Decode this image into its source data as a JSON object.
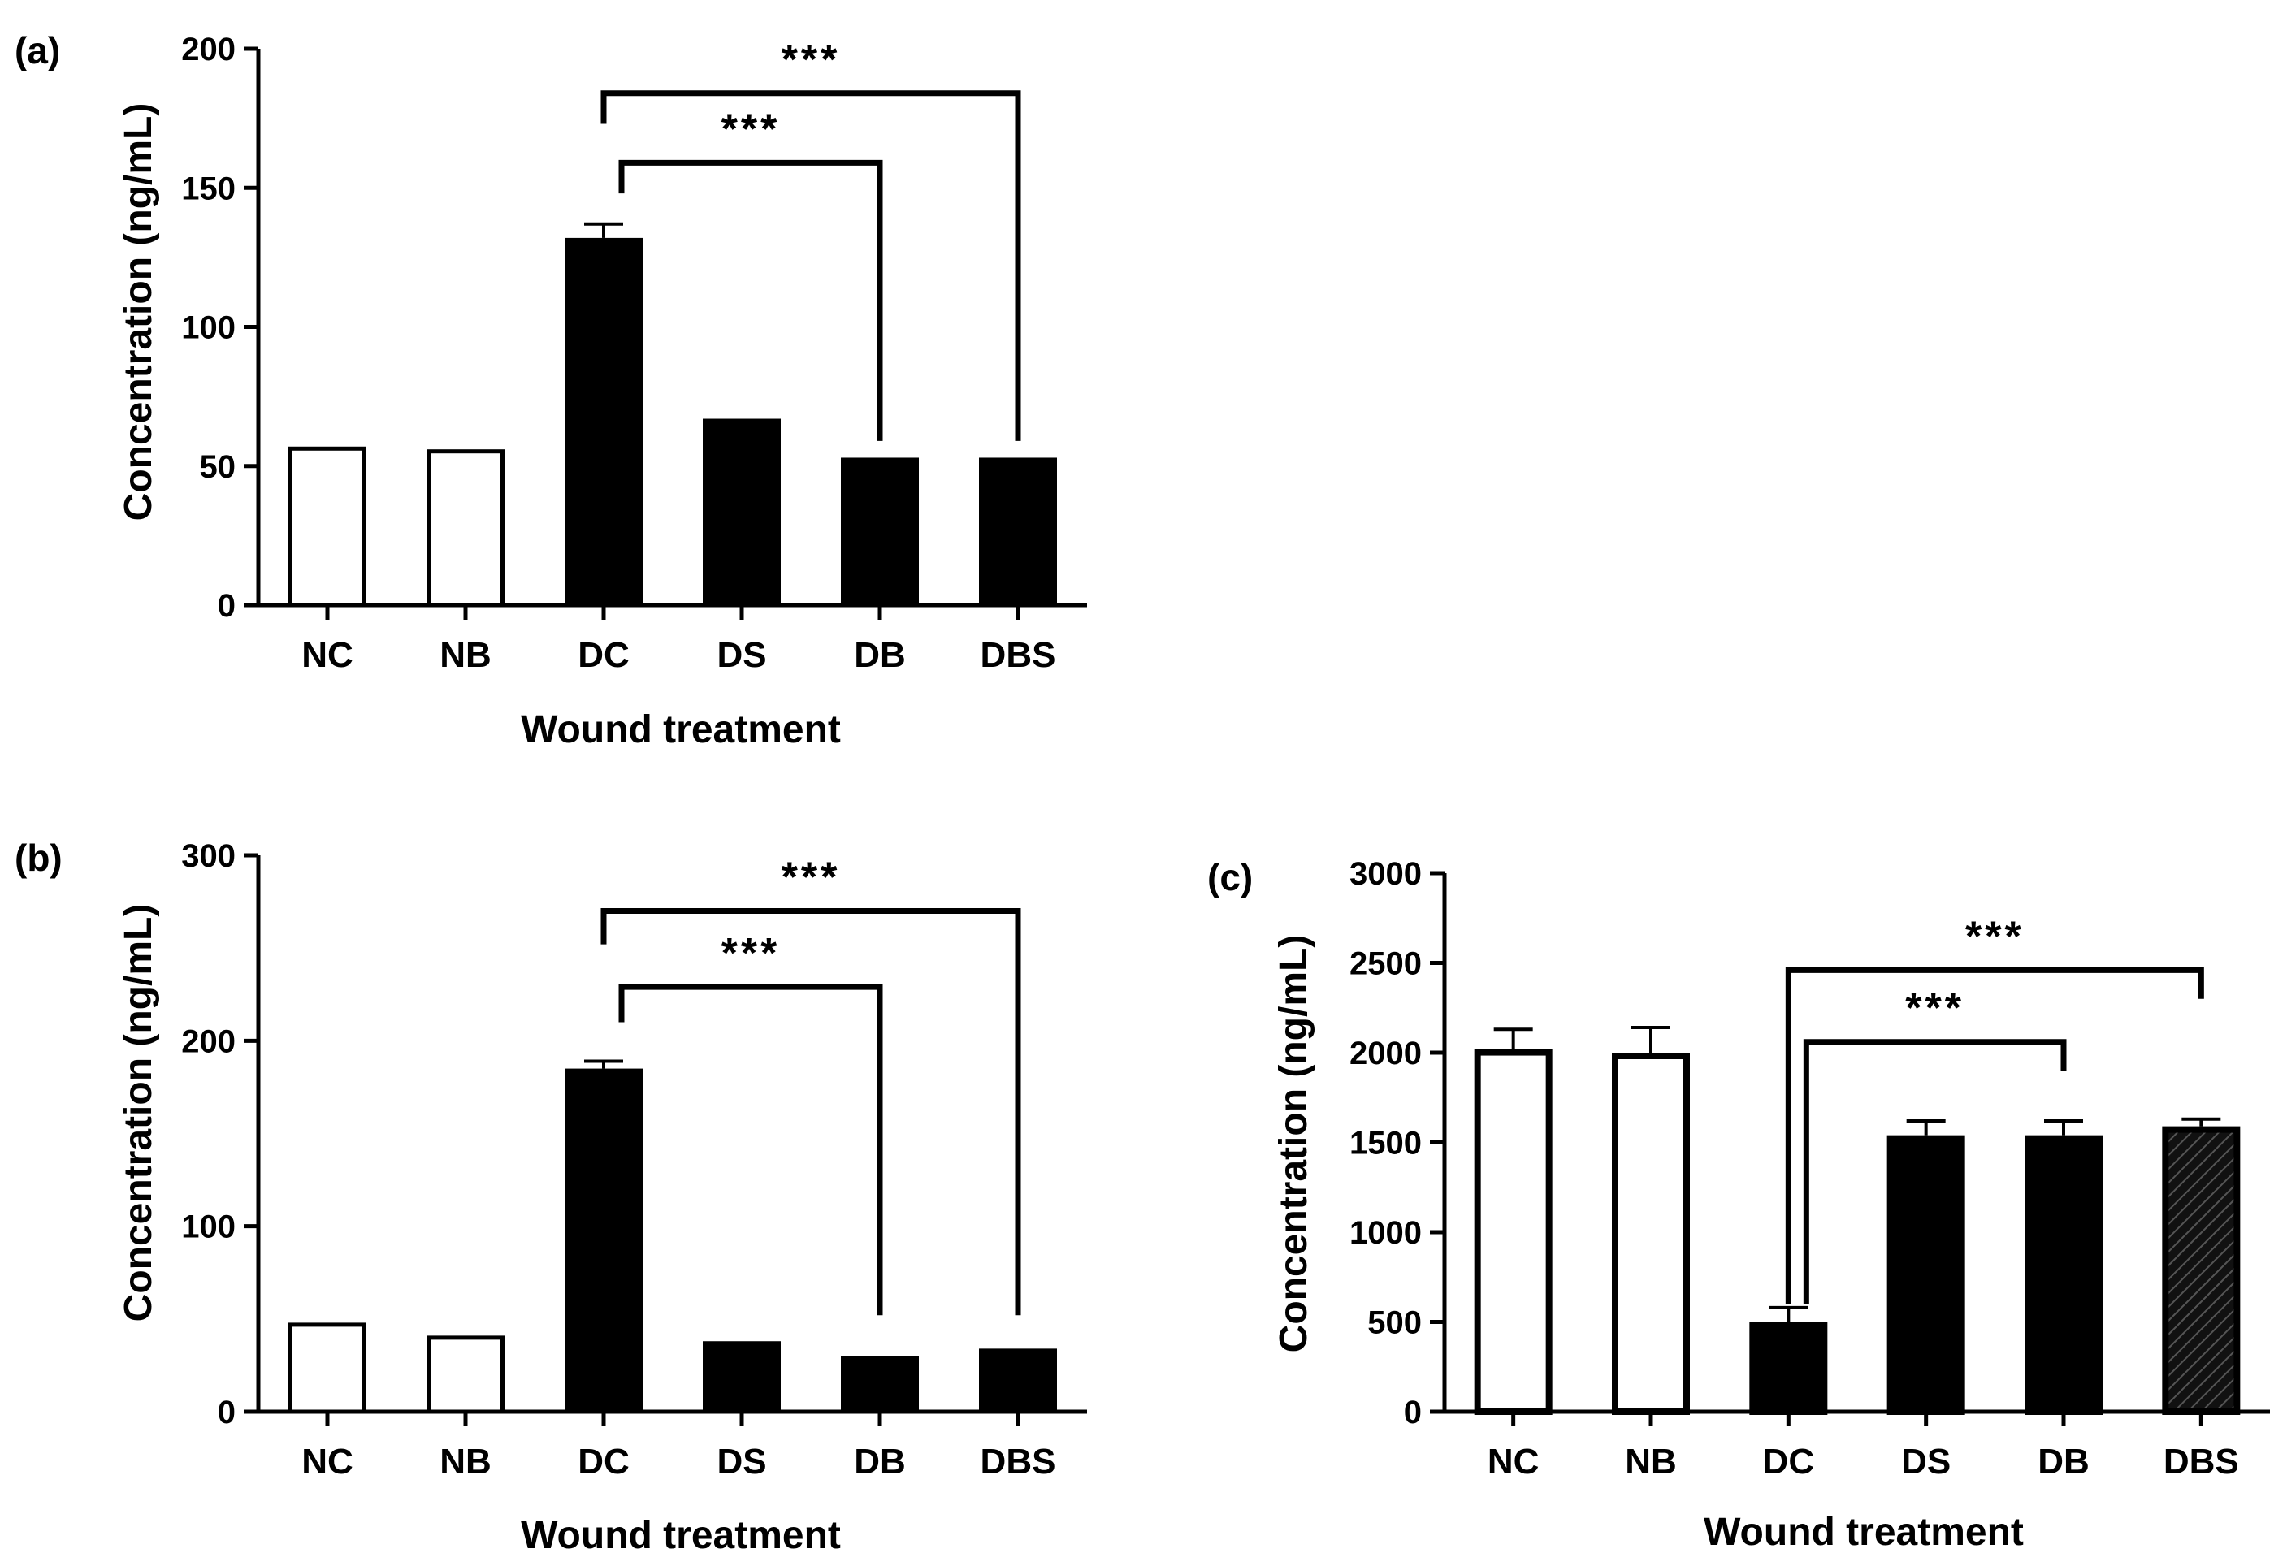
{
  "chart_data": [
    {
      "panel": "(a)",
      "type": "bar",
      "categories": [
        "NC",
        "NB",
        "DC",
        "DS",
        "DB",
        "DBS"
      ],
      "values": [
        57,
        56,
        132,
        67,
        53,
        53
      ],
      "errors": [
        0,
        0,
        5,
        0,
        0,
        0
      ],
      "fills": [
        "white",
        "white",
        "black",
        "black",
        "black",
        "black"
      ],
      "ylim": [
        0,
        200
      ],
      "yticks": [
        0,
        50,
        100,
        150,
        200
      ],
      "xlabel": "Wound treatment",
      "ylabel": "Concentration (ng/mL)",
      "significance": [
        {
          "from": "DC",
          "to": "DBS",
          "label": "***",
          "line_y": 184,
          "drop_y": 59,
          "start_y": 173
        },
        {
          "from": "DC",
          "to": "DB",
          "label": "***",
          "line_y": 159,
          "drop_y": 59,
          "start_y": 148
        }
      ]
    },
    {
      "panel": "(b)",
      "type": "bar",
      "categories": [
        "NC",
        "NB",
        "DC",
        "DS",
        "DB",
        "DBS"
      ],
      "values": [
        48,
        41,
        185,
        38,
        30,
        34
      ],
      "errors": [
        0,
        0,
        4,
        0,
        0,
        0
      ],
      "fills": [
        "white",
        "white",
        "black",
        "black",
        "black",
        "black"
      ],
      "ylim": [
        0,
        300
      ],
      "yticks": [
        0,
        100,
        200,
        300
      ],
      "xlabel": "Wound treatment",
      "ylabel": "Concentration (ng/mL)",
      "significance": [
        {
          "from": "DC",
          "to": "DBS",
          "label": "***",
          "line_y": 270,
          "drop_y": 52,
          "start_y": 252
        },
        {
          "from": "DC",
          "to": "DB",
          "label": "***",
          "line_y": 229,
          "drop_y": 52,
          "start_y": 210
        }
      ]
    },
    {
      "panel": "(c)",
      "type": "bar",
      "categories": [
        "NC",
        "NB",
        "DC",
        "DS",
        "DB",
        "DBS"
      ],
      "values": [
        2020,
        2000,
        500,
        1540,
        1540,
        1590
      ],
      "errors": [
        110,
        140,
        80,
        80,
        80,
        40
      ],
      "fills": [
        "white",
        "white",
        "black",
        "black",
        "black",
        "hatched"
      ],
      "ylim": [
        0,
        3000
      ],
      "yticks": [
        0,
        500,
        1000,
        1500,
        2000,
        2500,
        3000
      ],
      "xlabel": "Wound treatment",
      "ylabel": "Concentration (ng/mL)",
      "significance": [
        {
          "from": "DC",
          "to": "DBS",
          "label": "***",
          "line_y": 2460,
          "drop_y": 2300,
          "start_y": 600
        },
        {
          "from": "DC",
          "to": "DB",
          "label": "***",
          "line_y": 2060,
          "drop_y": 1900,
          "start_y": 600
        }
      ]
    }
  ]
}
